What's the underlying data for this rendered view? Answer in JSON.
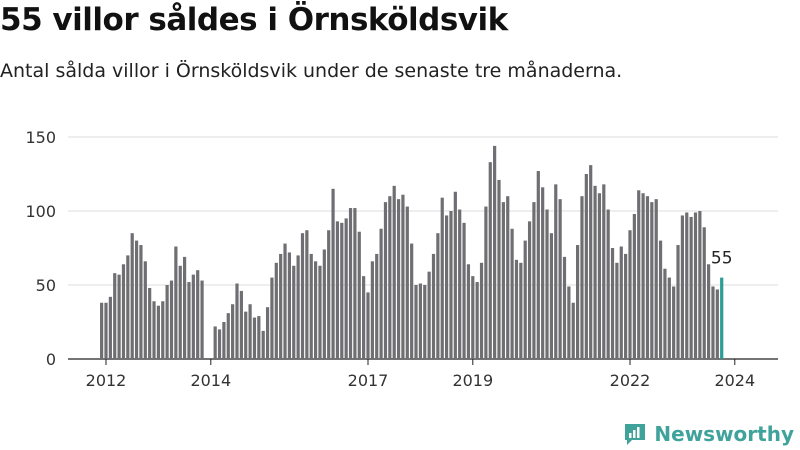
{
  "title": "55 villor såldes i Örnsköldsvik",
  "subtitle": "Antal sålda villor i Örnsköldsvik under de senaste tre månaderna.",
  "brand": {
    "name": "Newsworthy",
    "icon": "newsworthy-logo-icon"
  },
  "colors": {
    "bar": "#6e6e73",
    "highlight": "#2a9d95",
    "grid": "#dddddd",
    "brand": "#3fa39b"
  },
  "chart_data": {
    "type": "bar",
    "title": "",
    "xlabel": "",
    "ylabel": "",
    "ylim": [
      0,
      150
    ],
    "yticks": [
      0,
      50,
      100,
      150
    ],
    "grid": true,
    "xtick_labels": [
      {
        "label": "2012",
        "x": 2012.0
      },
      {
        "label": "2014",
        "x": 2014.0
      },
      {
        "label": "2017",
        "x": 2017.0
      },
      {
        "label": "2019",
        "x": 2019.0
      },
      {
        "label": "2022",
        "x": 2022.0
      },
      {
        "label": "2024",
        "x": 2024.0
      }
    ],
    "start": "2011-12",
    "values": [
      38,
      38,
      42,
      58,
      57,
      64,
      70,
      85,
      80,
      77,
      66,
      48,
      39,
      36,
      39,
      50,
      53,
      76,
      63,
      69,
      52,
      57,
      60,
      53,
      null,
      null,
      22,
      20,
      25,
      31,
      37,
      51,
      46,
      32,
      37,
      28,
      29,
      19,
      35,
      55,
      65,
      71,
      78,
      72,
      63,
      70,
      85,
      87,
      71,
      66,
      63,
      74,
      87,
      115,
      93,
      92,
      95,
      102,
      102,
      86,
      56,
      45,
      66,
      71,
      88,
      106,
      110,
      117,
      108,
      111,
      103,
      78,
      50,
      51,
      50,
      59,
      71,
      85,
      109,
      97,
      100,
      113,
      101,
      92,
      64,
      56,
      52,
      65,
      103,
      133,
      144,
      121,
      106,
      110,
      88,
      67,
      65,
      80,
      93,
      106,
      127,
      116,
      101,
      85,
      118,
      108,
      69,
      49,
      38,
      77,
      110,
      125,
      131,
      117,
      112,
      118,
      101,
      75,
      65,
      76,
      71,
      87,
      98,
      114,
      112,
      110,
      106,
      108,
      80,
      61,
      55,
      49,
      77,
      97,
      99,
      96,
      99,
      100,
      89,
      64,
      49,
      47,
      55
    ]
  },
  "annotation": {
    "label": "55"
  }
}
